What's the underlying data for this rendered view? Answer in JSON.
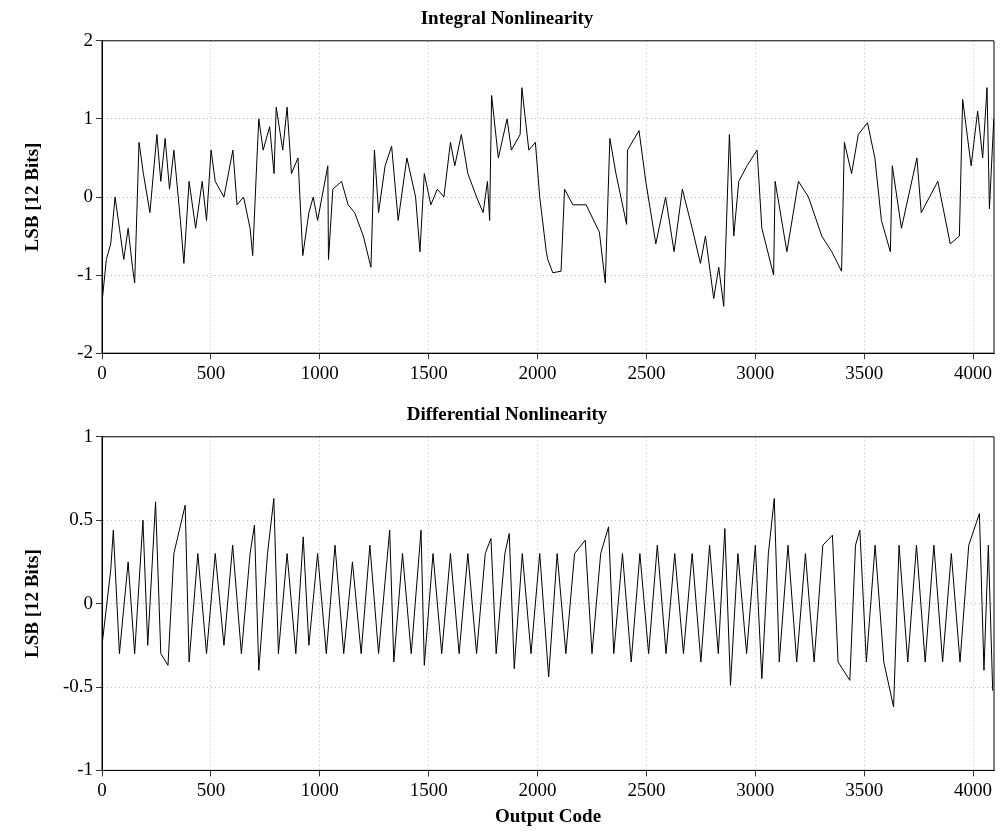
{
  "chart_data": [
    {
      "type": "line",
      "title": "Integral Nonlinearity",
      "ylabel": "LSB [12 Bits]",
      "xlim": [
        0,
        4096
      ],
      "xticks": [
        0,
        500,
        1000,
        1500,
        2000,
        2500,
        3000,
        3500,
        4000
      ],
      "ylim": [
        -2,
        2
      ],
      "yticks": [
        -2,
        -1,
        0,
        1,
        2
      ],
      "grid": true,
      "line_style": "solid",
      "marker": "none",
      "x": [
        0,
        20,
        40,
        60,
        80,
        100,
        120,
        140,
        150,
        160,
        170,
        190,
        220,
        252,
        270,
        290,
        310,
        330,
        360,
        376,
        400,
        430,
        460,
        480,
        501,
        520,
        560,
        601,
        620,
        650,
        680,
        692,
        710,
        720,
        740,
        770,
        790,
        800,
        830,
        850,
        870,
        900,
        922,
        950,
        970,
        990,
        1037,
        1040,
        1060,
        1100,
        1130,
        1160,
        1200,
        1235,
        1251,
        1270,
        1300,
        1330,
        1360,
        1400,
        1440,
        1460,
        1480,
        1510,
        1540,
        1570,
        1600,
        1620,
        1650,
        1680,
        1720,
        1750,
        1770,
        1780,
        1789,
        1820,
        1860,
        1880,
        1920,
        1928,
        1960,
        1990,
        2010,
        2040,
        2047,
        2070,
        2108,
        2124,
        2162,
        2223,
        2284,
        2311,
        2332,
        2360,
        2409,
        2413,
        2466,
        2497,
        2543,
        2588,
        2627,
        2665,
        2710,
        2748,
        2771,
        2809,
        2832,
        2855,
        2881,
        2901,
        2924,
        2962,
        3008,
        3030,
        3084,
        3091,
        3145,
        3198,
        3244,
        3305,
        3351,
        3396,
        3409,
        3442,
        3473,
        3515,
        3549,
        3579,
        3620,
        3629,
        3671,
        3742,
        3762,
        3838,
        3895,
        3937,
        3952,
        3991,
        4021,
        4044,
        4064,
        4075,
        4095
      ],
      "series": [
        {
          "color": "#000000",
          "values": [
            -1.35,
            -0.8,
            -0.6,
            0.0,
            -0.4,
            -0.8,
            -0.4,
            -0.9,
            -1.1,
            -0.2,
            0.7,
            0.3,
            -0.2,
            0.8,
            0.2,
            0.75,
            0.1,
            0.6,
            -0.3,
            -0.85,
            0.2,
            -0.4,
            0.2,
            -0.3,
            0.6,
            0.2,
            0.0,
            0.6,
            -0.1,
            0.0,
            -0.4,
            -0.75,
            0.4,
            1.0,
            0.6,
            0.9,
            0.3,
            1.15,
            0.6,
            1.15,
            0.3,
            0.5,
            -0.75,
            -0.2,
            0.0,
            -0.3,
            0.4,
            -0.8,
            0.1,
            0.2,
            -0.1,
            -0.2,
            -0.5,
            -0.9,
            0.6,
            -0.2,
            0.4,
            0.65,
            -0.3,
            0.5,
            0.0,
            -0.7,
            0.3,
            -0.1,
            0.1,
            0.0,
            0.7,
            0.4,
            0.8,
            0.3,
            0.0,
            -0.2,
            0.2,
            -0.3,
            1.3,
            0.5,
            1.0,
            0.6,
            0.8,
            1.4,
            0.6,
            0.7,
            0.0,
            -0.7,
            -0.8,
            -0.97,
            -0.95,
            0.1,
            -0.1,
            -0.1,
            -0.45,
            -1.1,
            0.75,
            0.3,
            -0.35,
            0.6,
            0.85,
            0.2,
            -0.6,
            0.0,
            -0.7,
            0.1,
            -0.4,
            -0.85,
            -0.5,
            -1.3,
            -0.9,
            -1.4,
            0.8,
            -0.5,
            0.2,
            0.4,
            0.6,
            -0.4,
            -1.0,
            0.2,
            -0.7,
            0.2,
            0.0,
            -0.5,
            -0.7,
            -0.95,
            0.7,
            0.3,
            0.8,
            0.95,
            0.5,
            -0.3,
            -0.7,
            0.4,
            -0.4,
            0.5,
            -0.2,
            0.2,
            -0.6,
            -0.5,
            1.25,
            0.4,
            1.1,
            0.5,
            1.4,
            -0.15,
            1.0
          ]
        }
      ]
    },
    {
      "type": "line",
      "title": "Differential Nonlinearity",
      "xlabel": "Output Code",
      "ylabel": "LSB [12 Bits]",
      "xlim": [
        0,
        4096
      ],
      "xticks": [
        0,
        500,
        1000,
        1500,
        2000,
        2500,
        3000,
        3500,
        4000
      ],
      "ylim": [
        -1,
        1
      ],
      "yticks": [
        -1,
        -0.5,
        0,
        0.5,
        1
      ],
      "grid": true,
      "line_style": "solid",
      "marker": "none",
      "x": [
        0,
        40,
        52,
        80,
        120,
        150,
        188,
        210,
        246,
        270,
        303,
        330,
        382,
        400,
        440,
        480,
        520,
        560,
        600,
        640,
        680,
        700,
        720,
        760,
        789,
        810,
        850,
        890,
        924,
        950,
        990,
        1030,
        1070,
        1110,
        1150,
        1190,
        1230,
        1270,
        1321,
        1340,
        1380,
        1420,
        1465,
        1480,
        1520,
        1560,
        1600,
        1640,
        1680,
        1720,
        1760,
        1786,
        1810,
        1850,
        1870,
        1893,
        1930,
        1970,
        2010,
        2051,
        2090,
        2130,
        2170,
        2219,
        2250,
        2290,
        2326,
        2350,
        2390,
        2430,
        2470,
        2510,
        2550,
        2590,
        2630,
        2670,
        2710,
        2750,
        2790,
        2830,
        2860,
        2886,
        2920,
        2960,
        3000,
        3030,
        3060,
        3087,
        3110,
        3150,
        3190,
        3230,
        3270,
        3310,
        3354,
        3380,
        3434,
        3460,
        3480,
        3510,
        3550,
        3590,
        3635,
        3660,
        3700,
        3740,
        3780,
        3820,
        3860,
        3900,
        3940,
        3980,
        4029,
        4050,
        4070,
        4090
      ],
      "series": [
        {
          "color": "#000000",
          "values": [
            -0.25,
            0.2,
            0.44,
            -0.3,
            0.25,
            -0.3,
            0.5,
            -0.25,
            0.61,
            -0.3,
            -0.37,
            0.3,
            0.59,
            -0.35,
            0.3,
            -0.3,
            0.3,
            -0.25,
            0.35,
            -0.3,
            0.3,
            0.47,
            -0.4,
            0.3,
            0.63,
            -0.3,
            0.3,
            -0.3,
            0.4,
            -0.25,
            0.3,
            -0.3,
            0.35,
            -0.3,
            0.25,
            -0.3,
            0.35,
            -0.3,
            0.44,
            -0.35,
            0.3,
            -0.3,
            0.44,
            -0.37,
            0.3,
            -0.3,
            0.3,
            -0.3,
            0.3,
            -0.3,
            0.3,
            0.39,
            -0.3,
            0.3,
            0.42,
            -0.39,
            0.3,
            -0.3,
            0.3,
            -0.44,
            0.3,
            -0.3,
            0.3,
            0.38,
            -0.3,
            0.3,
            0.46,
            -0.3,
            0.3,
            -0.35,
            0.3,
            -0.3,
            0.35,
            -0.3,
            0.3,
            -0.3,
            0.3,
            -0.35,
            0.35,
            -0.3,
            0.45,
            -0.49,
            0.3,
            -0.3,
            0.35,
            -0.45,
            0.3,
            0.63,
            -0.35,
            0.35,
            -0.35,
            0.3,
            -0.35,
            0.35,
            0.41,
            -0.35,
            -0.46,
            0.35,
            0.44,
            -0.35,
            0.35,
            -0.35,
            -0.62,
            0.35,
            -0.35,
            0.35,
            -0.35,
            0.35,
            -0.35,
            0.3,
            -0.35,
            0.35,
            0.54,
            -0.4,
            0.35,
            -0.52
          ]
        }
      ]
    }
  ]
}
